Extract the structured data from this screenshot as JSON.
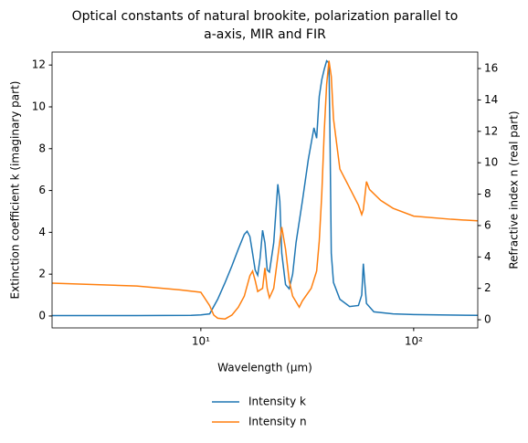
{
  "chart_data": {
    "type": "line",
    "title": [
      "Optical constants of natural brookite, polarization parallel to",
      "a-axis, MIR and FIR"
    ],
    "xlabel": "Wavelength (μm)",
    "ylabel": "Extinction coefficient k (imaginary part)",
    "y2label": "Refractive index n (real part)",
    "xscale": "log",
    "xlim": [
      2,
      200
    ],
    "xticks": [
      {
        "value": 10,
        "label": "10¹"
      },
      {
        "value": 100,
        "label": "10²"
      }
    ],
    "ylim": [
      -0.57,
      12.62
    ],
    "yticks": [
      0,
      2,
      4,
      6,
      8,
      10,
      12
    ],
    "y2lim": [
      -0.52,
      17.05
    ],
    "y2ticks": [
      0,
      2,
      4,
      6,
      8,
      10,
      12,
      14,
      16
    ],
    "legend": "bottom",
    "series": [
      {
        "name": "Intensity k",
        "color": "#1f77b4",
        "axis": "y",
        "x": [
          2,
          5,
          9,
          10,
          11,
          12,
          13,
          14,
          15,
          16,
          16.5,
          17,
          17.5,
          18,
          18.5,
          19,
          19.5,
          20,
          20.5,
          21,
          22,
          23,
          23.5,
          24,
          25,
          26,
          27,
          28,
          30,
          32,
          34,
          35,
          36,
          37,
          38,
          39,
          40,
          40.5,
          41,
          42,
          45,
          50,
          55,
          57,
          58,
          59,
          60,
          65,
          80,
          100,
          200
        ],
        "values": [
          0.02,
          0.02,
          0.03,
          0.05,
          0.1,
          0.8,
          1.6,
          2.4,
          3.2,
          3.9,
          4.05,
          3.8,
          3.0,
          2.2,
          1.95,
          2.8,
          4.1,
          3.5,
          2.2,
          2.1,
          3.5,
          6.3,
          5.5,
          3.0,
          1.5,
          1.3,
          2.0,
          3.5,
          5.5,
          7.5,
          9.0,
          8.5,
          10.5,
          11.3,
          11.8,
          12.2,
          12.1,
          8,
          3.0,
          1.6,
          0.8,
          0.45,
          0.5,
          1.0,
          2.5,
          1.5,
          0.6,
          0.2,
          0.1,
          0.07,
          0.03
        ]
      },
      {
        "name": "Intensity n",
        "color": "#ff7f0e",
        "axis": "y2",
        "x": [
          2,
          5,
          8,
          10,
          11,
          11.5,
          12,
          13,
          14,
          15,
          16,
          17,
          17.5,
          18,
          18.5,
          19.5,
          20,
          20.5,
          21,
          22,
          23.5,
          24,
          25,
          26,
          27,
          29,
          30,
          33,
          35,
          36,
          37,
          38,
          39,
          40,
          41,
          42,
          45,
          50,
          55,
          57,
          58,
          60,
          62,
          70,
          80,
          100,
          150,
          200
        ],
        "values": [
          2.33,
          2.15,
          1.9,
          1.75,
          0.9,
          0.3,
          0.1,
          0.05,
          0.3,
          0.8,
          1.5,
          2.8,
          3.1,
          2.5,
          1.8,
          2.0,
          3.3,
          2.0,
          1.4,
          2.0,
          5.0,
          5.9,
          4.5,
          2.5,
          1.5,
          0.8,
          1.2,
          2.0,
          3.1,
          5.0,
          8.0,
          12.0,
          15.0,
          16.5,
          15.5,
          12.8,
          9.6,
          8.4,
          7.3,
          6.7,
          7.0,
          8.8,
          8.3,
          7.6,
          7.1,
          6.6,
          6.4,
          6.3
        ]
      }
    ]
  }
}
